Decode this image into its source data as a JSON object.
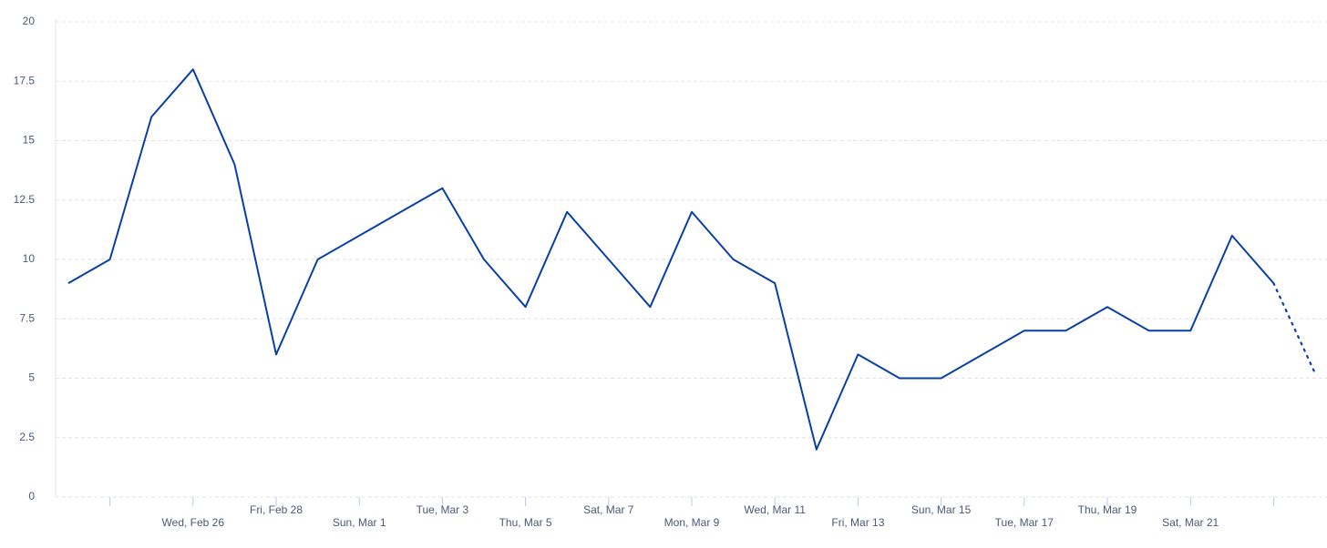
{
  "chart_data": {
    "type": "line",
    "categories": [
      null,
      null,
      null,
      "Wed, Feb 26",
      null,
      "Fri, Feb 28",
      null,
      "Sun, Mar 1",
      null,
      "Tue, Mar 3",
      null,
      "Thu, Mar 5",
      null,
      "Sat, Mar 7",
      null,
      "Mon, Mar 9",
      null,
      "Wed, Mar 11",
      null,
      "Fri, Mar 13",
      null,
      "Sun, Mar 15",
      null,
      "Tue, Mar 17",
      null,
      "Thu, Mar 19",
      null,
      "Sat, Mar 21",
      null,
      null,
      null
    ],
    "values": [
      9,
      10,
      16,
      18,
      14,
      6,
      10,
      11,
      12,
      13,
      10,
      8,
      12,
      10,
      8,
      12,
      10,
      9,
      2,
      6,
      5,
      5,
      6,
      7,
      7,
      8,
      7,
      7,
      11,
      9,
      5.2
    ],
    "color": "#0a3fa8",
    "dotted_last_segment": true,
    "ylim": [
      0,
      20
    ],
    "yticks": [
      0,
      2.5,
      5,
      7.5,
      10,
      12.5,
      15,
      17.5,
      20
    ],
    "grid": true
  }
}
